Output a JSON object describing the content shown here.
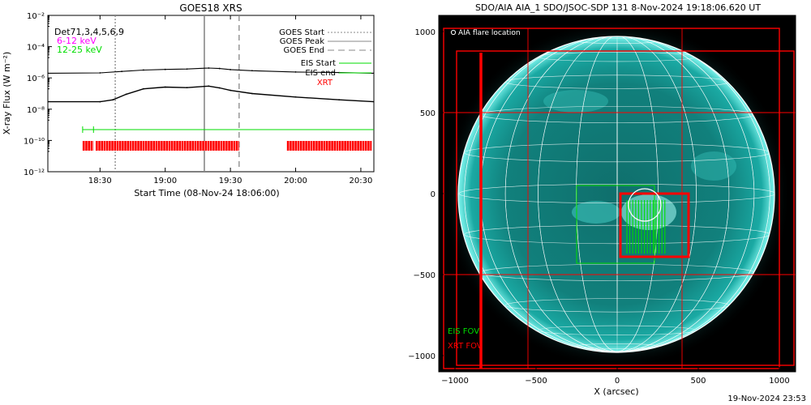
{
  "left_panel": {
    "title": "GOES18 XRS",
    "ylabel": "X-ray Flux (W m⁻²)",
    "xlabel": "Start Time (08-Nov-24 18:06:00)",
    "channels_label": "Det71,3,4,5,6,9",
    "band_low": "6-12 keV",
    "band_high": "12-25 keV",
    "legend": {
      "goes_start": "GOES Start",
      "goes_peak": "GOES Peak",
      "goes_end": "GOES End",
      "eis_start": "EIS Start",
      "eis_end": "EIS end",
      "xrt": "XRT"
    },
    "x_ticks": [
      "18:30",
      "19:00",
      "19:30",
      "20:00",
      "20:30"
    ],
    "y_ticks": [
      {
        "label": "10⁻²"
      },
      {
        "label": "10⁻⁴"
      },
      {
        "label": "10⁻⁶"
      },
      {
        "label": "10⁻⁸"
      },
      {
        "label": "10⁻¹⁰"
      },
      {
        "label": "10⁻¹²"
      }
    ]
  },
  "right_panel": {
    "title": "SDO/AIA AIA_1 SDO/JSOC-SDP 131  8-Nov-2024 19:18:06.620 UT",
    "xlabel": "X (arcsec)",
    "flare_label": "AIA flare location",
    "eis_fov": "EIS FOV",
    "xrt_fov": "XRT FOV",
    "x_ticks": [
      "−1000",
      "−500",
      "0",
      "500",
      "1000"
    ],
    "y_ticks": [
      "1000",
      "500",
      "0",
      "−500",
      "−1000"
    ]
  },
  "footer": "19-Nov-2024 23:53",
  "colors": {
    "goes_low": "#000000",
    "goes_high": "#000000",
    "eis": "#00dd00",
    "xrt": "#ff0000",
    "magenta": "#ff00ff",
    "sun": "#1ec7c0"
  },
  "chart_data": [
    {
      "type": "line",
      "title": "GOES18 XRS",
      "xlabel": "Start Time (08-Nov-24 18:06:00)",
      "ylabel": "X-ray Flux (W m-2)",
      "y_scale": "log",
      "xlim": [
        "18:06",
        "20:36"
      ],
      "ylim": [
        1e-12,
        0.01
      ],
      "series": [
        {
          "name": "6-12 keV",
          "x": [
            "18:06",
            "18:30",
            "18:40",
            "18:50",
            "19:00",
            "19:10",
            "19:20",
            "19:25",
            "19:30",
            "19:40",
            "20:00",
            "20:20",
            "20:36"
          ],
          "values": [
            2e-06,
            2.1e-06,
            2.6e-06,
            3.2e-06,
            3.5e-06,
            3.7e-06,
            4.3e-06,
            4e-06,
            3.4e-06,
            2.9e-06,
            2.4e-06,
            2.2e-06,
            2e-06
          ]
        },
        {
          "name": "12-25 keV",
          "x": [
            "18:06",
            "18:30",
            "18:36",
            "18:42",
            "18:50",
            "19:00",
            "19:10",
            "19:20",
            "19:25",
            "19:30",
            "19:40",
            "20:00",
            "20:20",
            "20:36"
          ],
          "values": [
            3e-08,
            3e-08,
            4e-08,
            9e-08,
            2e-07,
            2.6e-07,
            2.4e-07,
            3e-07,
            2.3e-07,
            1.6e-07,
            1e-07,
            6e-08,
            4e-08,
            3e-08
          ]
        }
      ],
      "vlines": [
        {
          "name": "GOES Start",
          "x": "18:37",
          "style": "dotted"
        },
        {
          "name": "GOES Peak",
          "x": "19:18",
          "style": "solid"
        },
        {
          "name": "GOES End",
          "x": "19:34",
          "style": "dashed"
        }
      ],
      "eis_ranges": [
        {
          "start": "18:22",
          "end": "18:28"
        },
        {
          "start": "18:27",
          "end": "20:36"
        }
      ],
      "xrt_ranges": [
        {
          "start": "18:22",
          "end": "18:27"
        },
        {
          "start": "18:28",
          "end": "19:34"
        },
        {
          "start": "19:56",
          "end": "20:35"
        }
      ]
    },
    {
      "type": "scatter",
      "title": "SDO/AIA AIA_1 SDO/JSOC-SDP 131  8-Nov-2024 19:18:06.620 UT",
      "xlabel": "X (arcsec)",
      "ylabel": "",
      "xlim": [
        -1100,
        1100
      ],
      "ylim": [
        -1100,
        1100
      ],
      "solar_radius_arcsec": 975,
      "flare_location": {
        "x": 170,
        "y": -70
      },
      "eis_fov": [
        {
          "x0": -250,
          "x1": 230,
          "y0": -430,
          "y1": 50
        }
      ],
      "xrt_fov": [
        {
          "x0": -1070,
          "x1": 1000,
          "y0": -1080,
          "y1": 1020
        },
        {
          "x0": -990,
          "x1": 1090,
          "y0": -1060,
          "y1": 880
        },
        {
          "x0": 20,
          "x1": 440,
          "y0": -390,
          "y1": 0
        }
      ]
    }
  ]
}
